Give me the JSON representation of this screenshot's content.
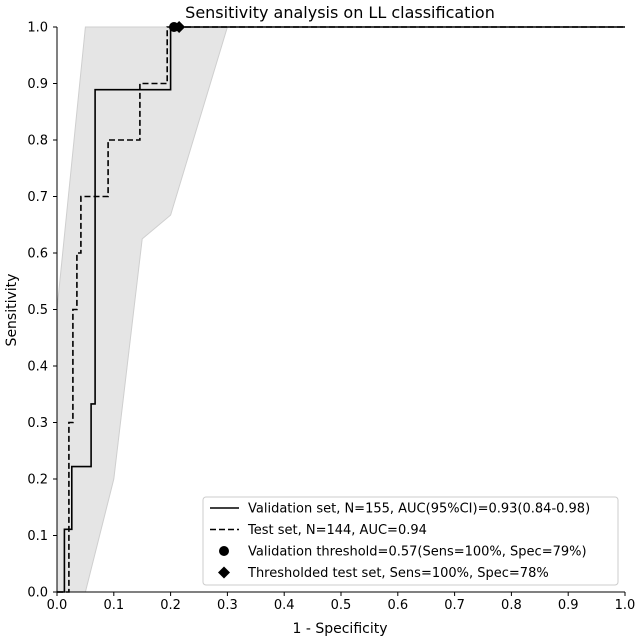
{
  "chart_data": {
    "type": "line",
    "title": "Sensitivity analysis on LL classification",
    "xlabel": "1 - Specificity",
    "ylabel": "Sensitivity",
    "xlim": [
      0,
      1
    ],
    "ylim": [
      0,
      1
    ],
    "xticks": [
      "0.0",
      "0.1",
      "0.2",
      "0.3",
      "0.4",
      "0.5",
      "0.6",
      "0.7",
      "0.8",
      "0.9",
      "1.0"
    ],
    "yticks": [
      "0.0",
      "0.1",
      "0.2",
      "0.3",
      "0.4",
      "0.5",
      "0.6",
      "0.7",
      "0.8",
      "0.9",
      "1.0"
    ],
    "legend_position": "bottom-right",
    "ci_band": {
      "upper": [
        [
          0,
          0
        ],
        [
          0,
          0.5
        ],
        [
          0.05,
          1.0
        ],
        [
          1,
          1.0
        ]
      ],
      "lower": [
        [
          1,
          1.0
        ],
        [
          0.3,
          1.0
        ],
        [
          0.2,
          0.667
        ],
        [
          0.15,
          0.625
        ],
        [
          0.1,
          0.2
        ],
        [
          0.05,
          0.0
        ],
        [
          0,
          0
        ]
      ]
    },
    "series": [
      {
        "name": "Validation set, N=155, AUC(95%CI)=0.93(0.84-0.98)",
        "style": "solid",
        "points": [
          [
            0,
            0
          ],
          [
            0.013,
            0
          ],
          [
            0.013,
            0.111
          ],
          [
            0.026,
            0.111
          ],
          [
            0.026,
            0.222
          ],
          [
            0.06,
            0.222
          ],
          [
            0.06,
            0.333
          ],
          [
            0.067,
            0.333
          ],
          [
            0.067,
            0.889
          ],
          [
            0.2,
            0.889
          ],
          [
            0.2,
            1.0
          ],
          [
            1,
            1.0
          ]
        ]
      },
      {
        "name": "Test set, N=144, AUC=0.94",
        "style": "dashed",
        "points": [
          [
            0,
            0
          ],
          [
            0.021,
            0
          ],
          [
            0.021,
            0.3
          ],
          [
            0.028,
            0.3
          ],
          [
            0.028,
            0.5
          ],
          [
            0.035,
            0.5
          ],
          [
            0.035,
            0.6
          ],
          [
            0.042,
            0.6
          ],
          [
            0.042,
            0.7
          ],
          [
            0.09,
            0.7
          ],
          [
            0.09,
            0.8
          ],
          [
            0.146,
            0.8
          ],
          [
            0.146,
            0.9
          ],
          [
            0.194,
            0.9
          ],
          [
            0.194,
            1.0
          ],
          [
            1,
            1.0
          ]
        ]
      }
    ],
    "markers": [
      {
        "name": "Validation threshold=0.57(Sens=100%, Spec=79%)",
        "shape": "circle",
        "x": 0.206,
        "y": 1.0
      },
      {
        "name": "Thresholded test set, Sens=100%, Spec=78%",
        "shape": "diamond",
        "x": 0.215,
        "y": 1.0
      }
    ]
  }
}
